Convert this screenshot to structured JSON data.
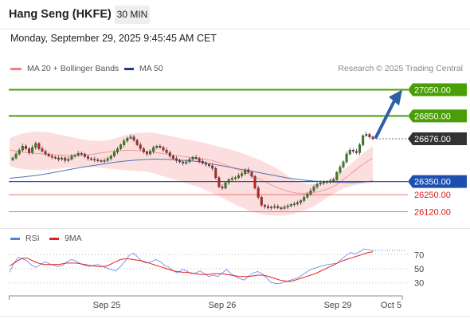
{
  "header": {
    "title": "Hang Seng (HKFE)",
    "interval": "30 MIN",
    "timestamp": "Monday, September 29, 2025 9:45:45 AM CET"
  },
  "legend": {
    "bollinger_label": "MA 20 + Bollinger Bands",
    "ma50_label": "MA 50",
    "copyright": "Research © 2025 Trading Central",
    "rsi_label": "RSI",
    "rsi_ma_label": "9MA"
  },
  "colors": {
    "green_level": "#4a9e06",
    "blue_level": "#1d4fb0",
    "red_level": "#f07070",
    "current_price": "#333333",
    "arrow": "#2f5fa8",
    "candle_up": "#2e8b0f",
    "candle_down": "#c81e1e",
    "bollinger_fill": "#fdd8d8",
    "ma20": "#f09a9a",
    "ma50": "#5570b8",
    "rsi": "#6f93e6",
    "rsi_ma": "#e52020"
  },
  "chart_data": [
    {
      "type": "candlestick",
      "title": "",
      "x_tick_labels": [
        "Sep 25",
        "Sep 26",
        "Sep 29",
        "Oct 5"
      ],
      "ylim": [
        26050,
        27150
      ],
      "levels": [
        {
          "label": "27050.00",
          "value": 27050,
          "kind": "resistance"
        },
        {
          "label": "26850.00",
          "value": 26850,
          "kind": "resistance"
        },
        {
          "label": "26676.00",
          "value": 26676,
          "kind": "current"
        },
        {
          "label": "26350.00",
          "value": 26350,
          "kind": "pivot"
        },
        {
          "label": "26250.00",
          "value": 26250,
          "kind": "support"
        },
        {
          "label": "26120.00",
          "value": 26120,
          "kind": "support"
        }
      ],
      "closes": [
        26530,
        26560,
        26590,
        26620,
        26600,
        26570,
        26610,
        26640,
        26600,
        26580,
        26560,
        26545,
        26535,
        26530,
        26520,
        26530,
        26510,
        26520,
        26545,
        26550,
        26565,
        26560,
        26540,
        26525,
        26520,
        26515,
        26510,
        26505,
        26510,
        26525,
        26545,
        26575,
        26600,
        26630,
        26660,
        26680,
        26690,
        26665,
        26630,
        26600,
        26575,
        26560,
        26580,
        26610,
        26620,
        26610,
        26590,
        26570,
        26545,
        26525,
        26510,
        26500,
        26490,
        26500,
        26520,
        26535,
        26525,
        26505,
        26490,
        26480,
        26470,
        26450,
        26380,
        26310,
        26300,
        26340,
        26365,
        26375,
        26380,
        26395,
        26410,
        26440,
        26420,
        26390,
        26300,
        26230,
        26170,
        26160,
        26150,
        26155,
        26160,
        26150,
        26145,
        26155,
        26165,
        26175,
        26180,
        26190,
        26205,
        26230,
        26255,
        26280,
        26310,
        26330,
        26340,
        26345,
        26350,
        26355,
        26365,
        26420,
        26460,
        26500,
        26560,
        26590,
        26580,
        26570,
        26630,
        26700,
        26710,
        26690,
        26676
      ],
      "ma20": [
        26590,
        26585,
        26580,
        26575,
        26570,
        26568,
        26565,
        26563,
        26560,
        26558,
        26556,
        26554,
        26552,
        26550,
        26548,
        26548,
        26549,
        26550,
        26552,
        26555,
        26560,
        26565,
        26570,
        26574,
        26578,
        26582,
        26585,
        26587,
        26588,
        26588,
        26587,
        26585,
        26582,
        26578,
        26574,
        26569,
        26565,
        26560,
        26555,
        26550,
        26546,
        26542,
        26538,
        26534,
        26530,
        26526,
        26522,
        26517,
        26510,
        26500,
        26490,
        26478,
        26465,
        26452,
        26440,
        26428,
        26415,
        26400,
        26385,
        26370,
        26355,
        26340,
        26325,
        26310,
        26297,
        26285,
        26275,
        26267,
        26262,
        26260,
        26260,
        26262,
        26266,
        26272,
        26280,
        26290,
        26302,
        26318,
        26340,
        26365,
        26390,
        26415,
        26440,
        26465,
        26490,
        26510,
        26530
      ],
      "ma50": [
        26375,
        26378,
        26381,
        26384,
        26388,
        26392,
        26396,
        26400,
        26405,
        26410,
        26416,
        26422,
        26428,
        26434,
        26440,
        26446,
        26452,
        26458,
        26463,
        26468,
        26473,
        26478,
        26483,
        26488,
        26493,
        26497,
        26501,
        26505,
        26508,
        26511,
        26514,
        26516,
        26518,
        26520,
        26521,
        26521,
        26520,
        26519,
        26518,
        26516,
        26514,
        26512,
        26510,
        26507,
        26504,
        26500,
        26495,
        26490,
        26484,
        26478,
        26472,
        26466,
        26460,
        26454,
        26448,
        26442,
        26436,
        26430,
        26424,
        26418,
        26412,
        26406,
        26400,
        26394,
        26388,
        26382,
        26377,
        26372,
        26368,
        26364,
        26360,
        26357,
        26354,
        26352,
        26350,
        26348,
        26346,
        26345,
        26344,
        26343,
        26342,
        26342,
        26343,
        26345,
        26348,
        26351,
        26354
      ],
      "bollinger_upper": [
        26680,
        26700,
        26715,
        26725,
        26730,
        26730,
        26725,
        26715,
        26705,
        26695,
        26685,
        26675,
        26665,
        26660,
        26660,
        26665,
        26675,
        26690,
        26705,
        26715,
        26722,
        26725,
        26722,
        26715,
        26705,
        26695,
        26685,
        26675,
        26665,
        26655,
        26645,
        26632,
        26620,
        26608,
        26595,
        26580,
        26565,
        26545,
        26525,
        26505,
        26480,
        26455,
        26425,
        26390,
        26360,
        26340,
        26330,
        26330,
        26340,
        26360,
        26385,
        26420,
        26460,
        26500,
        26545,
        26585,
        26620
      ],
      "bollinger_lower": [
        26470,
        26455,
        26445,
        26440,
        26438,
        26438,
        26440,
        26445,
        26450,
        26455,
        26458,
        26460,
        26460,
        26458,
        26455,
        26450,
        26445,
        26440,
        26436,
        26432,
        26430,
        26425,
        26415,
        26400,
        26385,
        26370,
        26355,
        26340,
        26325,
        26310,
        26290,
        26270,
        26245,
        26220,
        26195,
        26170,
        26148,
        26128,
        26112,
        26100,
        26093,
        26090,
        26090,
        26095,
        26105,
        26120,
        26140,
        26165,
        26195,
        26230,
        26260,
        26285,
        26305,
        26320,
        26330,
        26335,
        26340
      ]
    },
    {
      "type": "line",
      "title": "",
      "ylim": [
        15,
        85
      ],
      "y_ticks": [
        70,
        50,
        30
      ],
      "series": [
        {
          "name": "RSI",
          "values": [
            45,
            58,
            66,
            64,
            61,
            55,
            52,
            56,
            60,
            57,
            55,
            53,
            55,
            60,
            63,
            61,
            57,
            55,
            53,
            55,
            56,
            53,
            51,
            49,
            47,
            53,
            60,
            69,
            72,
            66,
            60,
            58,
            60,
            63,
            60,
            55,
            52,
            47,
            44,
            49,
            47,
            43,
            44,
            47,
            43,
            39,
            41,
            39,
            44,
            49,
            43,
            39,
            36,
            34,
            40,
            44,
            46,
            43,
            37,
            31,
            29,
            29,
            31,
            33,
            35,
            37,
            41,
            45,
            49,
            51,
            53,
            55,
            56,
            57,
            58,
            64,
            69,
            73,
            71,
            74,
            78,
            77,
            76
          ]
        },
        {
          "name": "9MA",
          "values": [
            54,
            58,
            62,
            65,
            65,
            62,
            59,
            57,
            56,
            56,
            56,
            56,
            57,
            58,
            58,
            58,
            57,
            56,
            55,
            54,
            53,
            53,
            54,
            57,
            60,
            63,
            64,
            64,
            63,
            62,
            61,
            59,
            57,
            55,
            53,
            51,
            49,
            47,
            46,
            45,
            45,
            44,
            43,
            42,
            42,
            42,
            43,
            43,
            43,
            42,
            41,
            40,
            39,
            39,
            39,
            40,
            41,
            41,
            40,
            38,
            36,
            34,
            33,
            32,
            33,
            35,
            37,
            39,
            41,
            43,
            46,
            49,
            52,
            55,
            58,
            61,
            63,
            65,
            67,
            69,
            71,
            73,
            74
          ]
        }
      ]
    }
  ]
}
